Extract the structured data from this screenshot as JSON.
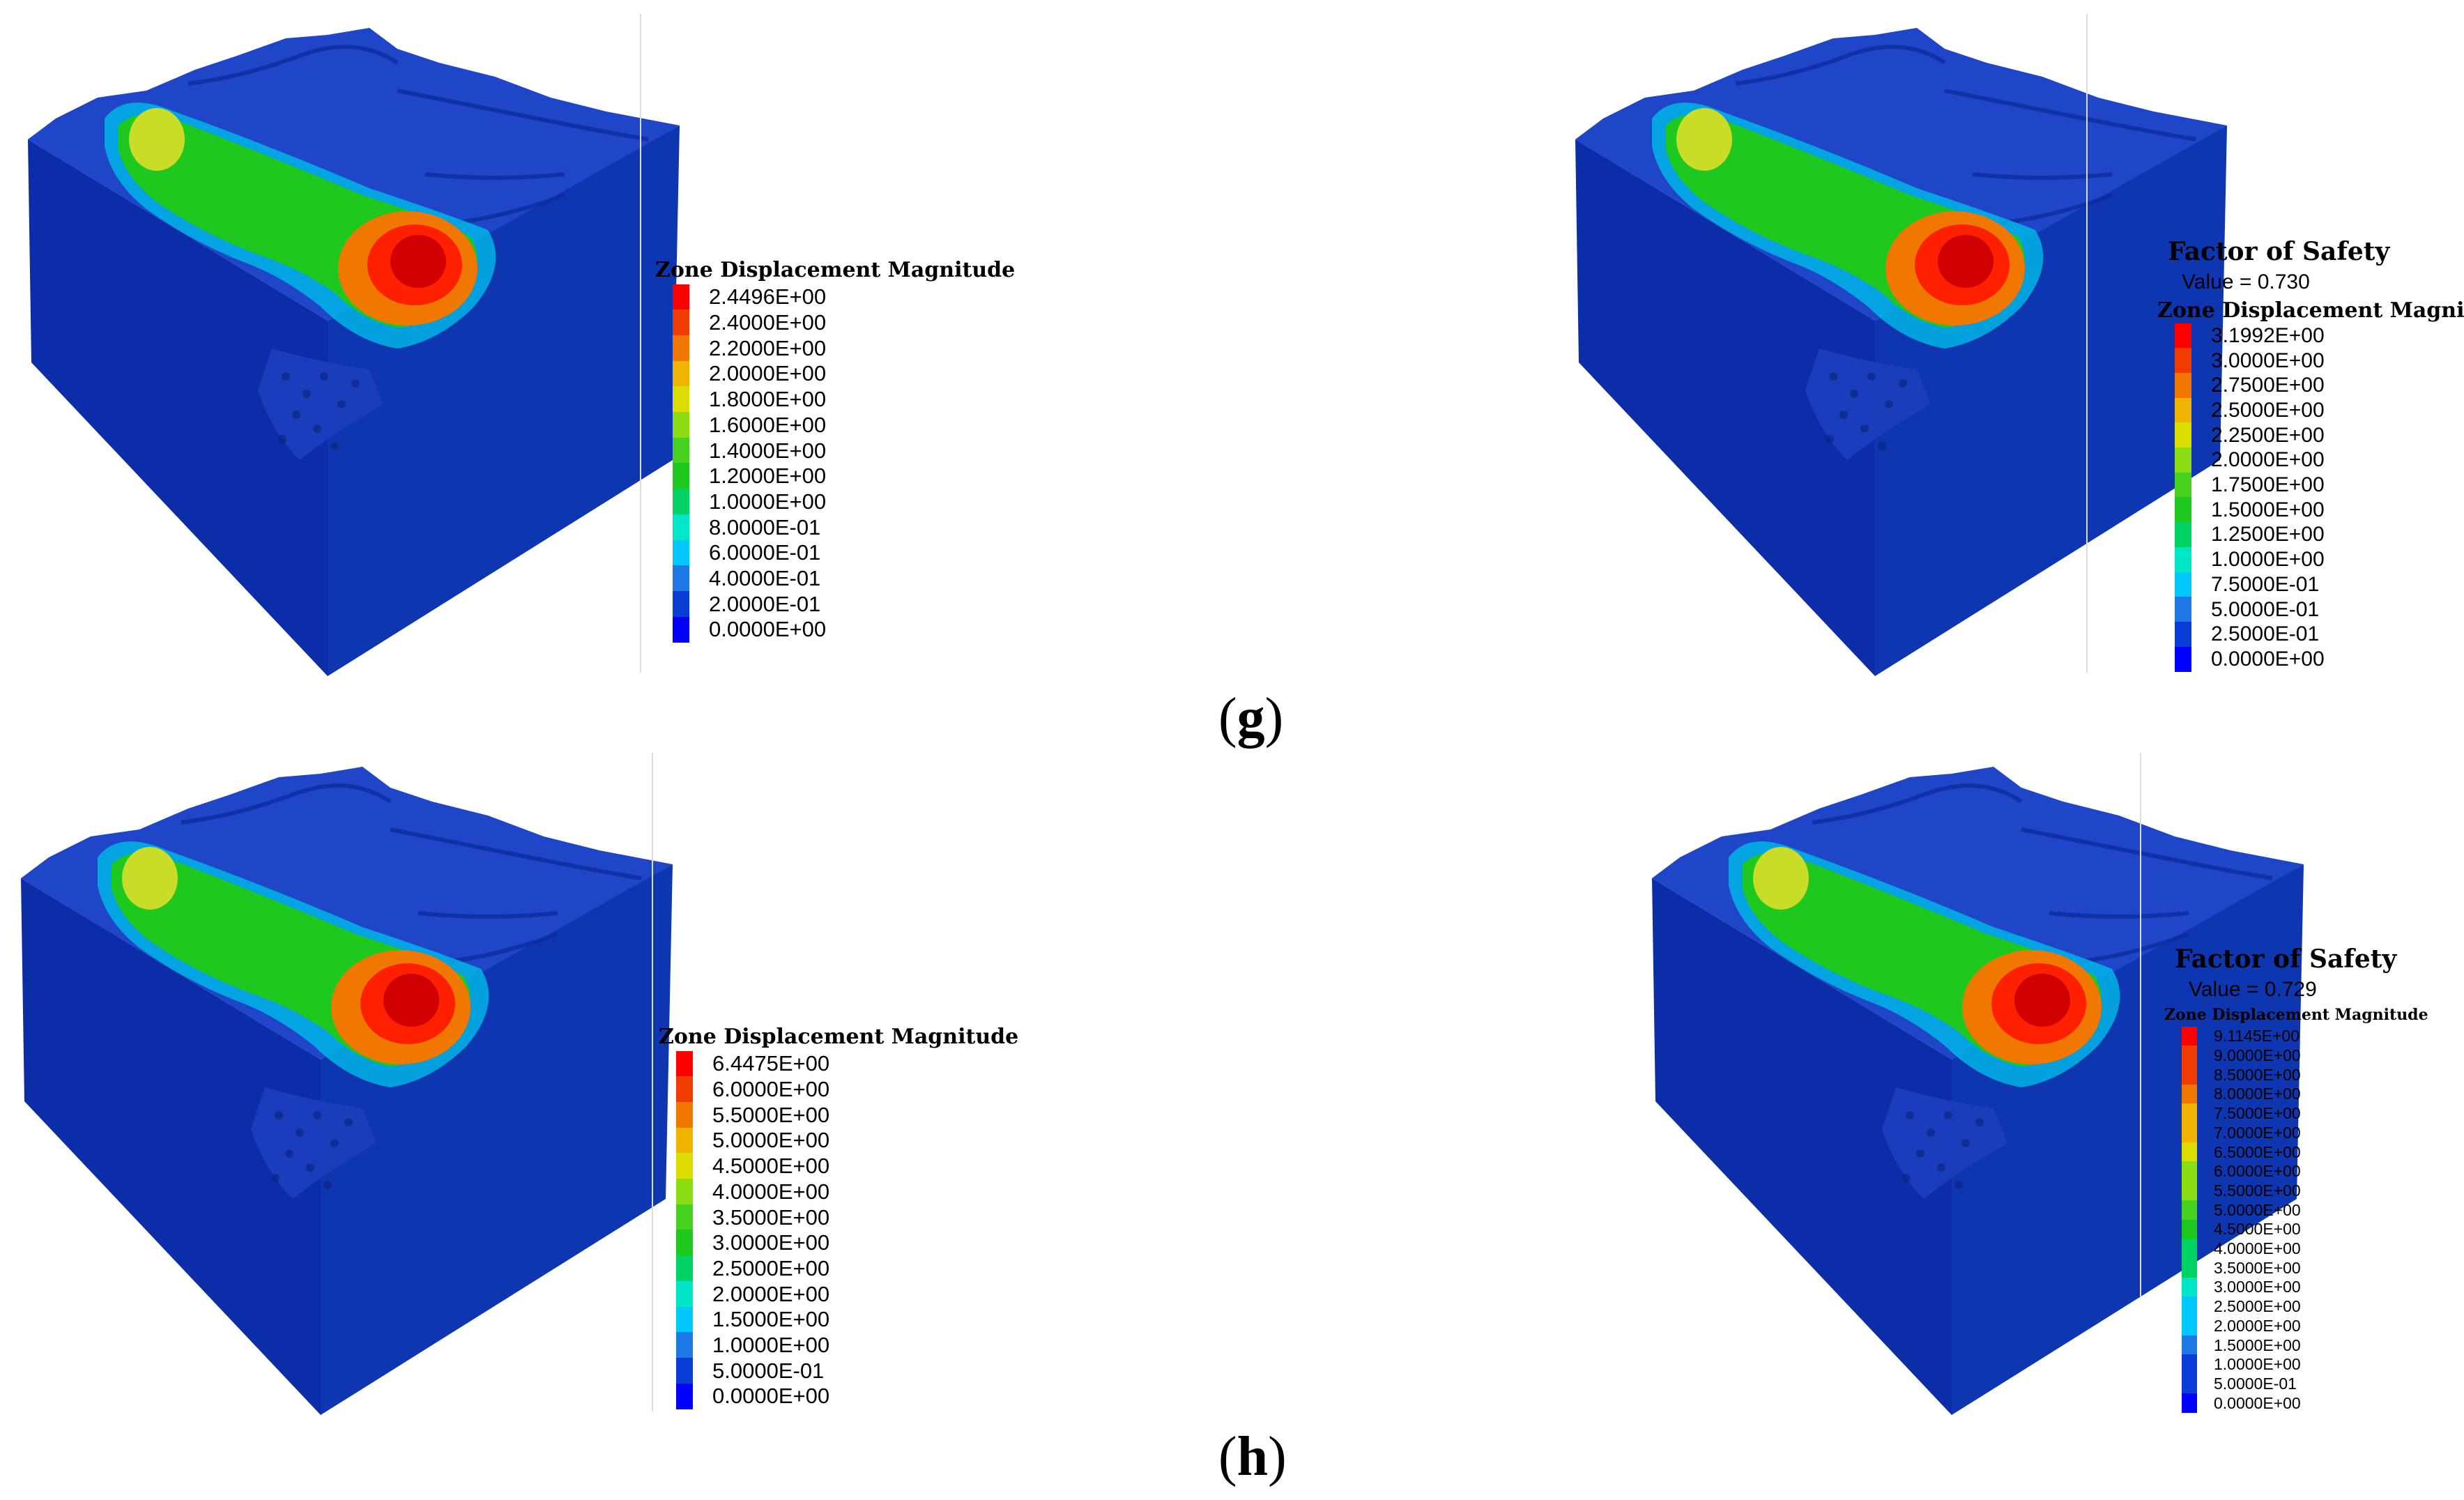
{
  "captions": [
    "g",
    "h"
  ],
  "colors": {
    "scale": [
      "#0000ff",
      "#0a3cd6",
      "#1e78e6",
      "#00c8ff",
      "#00e6c8",
      "#00d264",
      "#1ec81e",
      "#46d21e",
      "#8cdc14",
      "#dcdc00",
      "#f0b400",
      "#f07800",
      "#f03c00",
      "#ff0000"
    ],
    "block_front": "#0b2da8",
    "block_side": "#0e3bb5",
    "block_top": "#1f45c8"
  },
  "panels": [
    {
      "fos": null,
      "legend_title": "Zone Displacement Magnitude",
      "levels": [
        "2.4496E+00",
        "2.4000E+00",
        "2.2000E+00",
        "2.0000E+00",
        "1.8000E+00",
        "1.6000E+00",
        "1.4000E+00",
        "1.2000E+00",
        "1.0000E+00",
        "8.0000E-01",
        "6.0000E-01",
        "4.0000E-01",
        "2.0000E-01",
        "0.0000E+00"
      ]
    },
    {
      "fos": {
        "title": "Factor of Safety",
        "value": "Value = 0.730"
      },
      "legend_title": "Zone Displacement Magnitude",
      "levels": [
        "3.1992E+00",
        "3.0000E+00",
        "2.7500E+00",
        "2.5000E+00",
        "2.2500E+00",
        "2.0000E+00",
        "1.7500E+00",
        "1.5000E+00",
        "1.2500E+00",
        "1.0000E+00",
        "7.5000E-01",
        "5.0000E-01",
        "2.5000E-01",
        "0.0000E+00"
      ]
    },
    {
      "fos": null,
      "legend_title": "Zone Displacement Magnitude",
      "levels": [
        "6.4475E+00",
        "6.0000E+00",
        "5.5000E+00",
        "5.0000E+00",
        "4.5000E+00",
        "4.0000E+00",
        "3.5000E+00",
        "3.0000E+00",
        "2.5000E+00",
        "2.0000E+00",
        "1.5000E+00",
        "1.0000E+00",
        "5.0000E-01",
        "0.0000E+00"
      ]
    },
    {
      "fos": {
        "title": "Factor of Safety",
        "value": "Value = 0.729"
      },
      "legend_title": "Zone Displacement Magnitude",
      "levels": [
        "9.1145E+00",
        "9.0000E+00",
        "8.5000E+00",
        "8.0000E+00",
        "7.5000E+00",
        "7.0000E+00",
        "6.5000E+00",
        "6.0000E+00",
        "5.5000E+00",
        "5.0000E+00",
        "4.5000E+00",
        "4.0000E+00",
        "3.5000E+00",
        "3.0000E+00",
        "2.5000E+00",
        "2.0000E+00",
        "1.5000E+00",
        "1.0000E+00",
        "5.0000E-01",
        "0.0000E+00"
      ]
    }
  ]
}
